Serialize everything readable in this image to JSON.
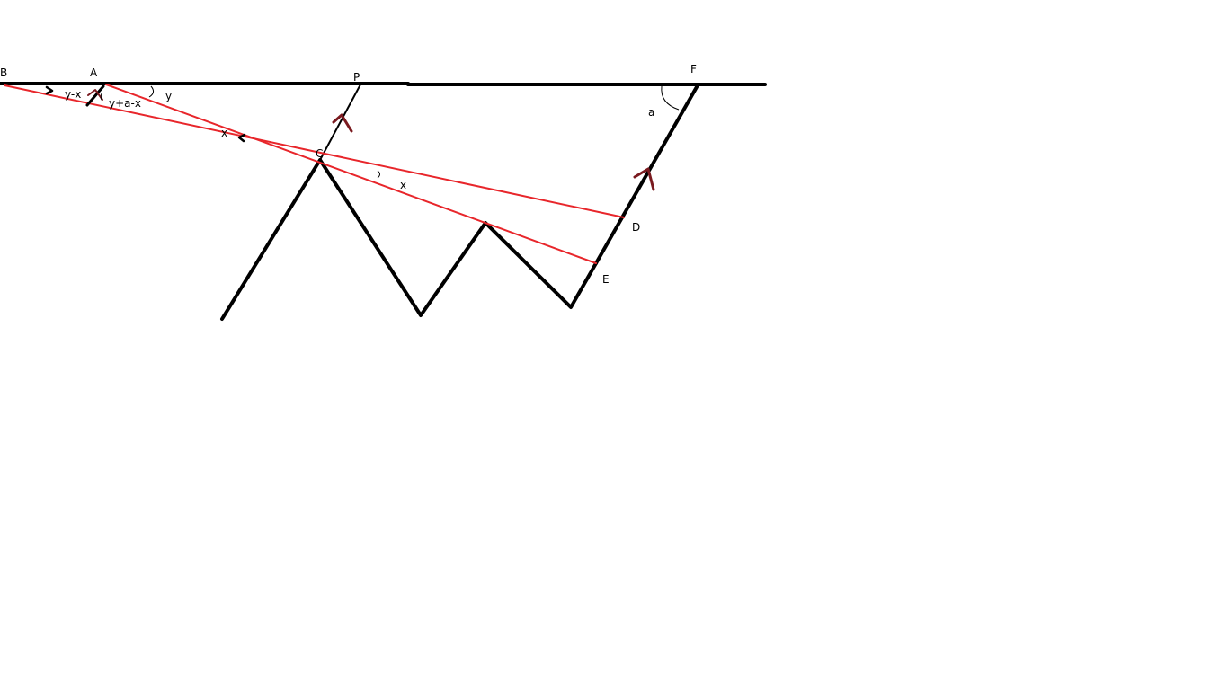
{
  "diagram": {
    "colors": {
      "background": "#ffffff",
      "structure": "#000000",
      "rays": "#e8262b",
      "arrows": "#7a1a1f"
    },
    "points": {
      "B": "B",
      "A": "A",
      "P": "P",
      "F": "F",
      "C": "C",
      "D": "D",
      "E": "E"
    },
    "angles": {
      "y_minus_x": "y-x",
      "y_plus_a_minus_x": "y+a-x",
      "y": "y",
      "x_upper": "x",
      "x_lower": "x",
      "a": "a"
    }
  }
}
